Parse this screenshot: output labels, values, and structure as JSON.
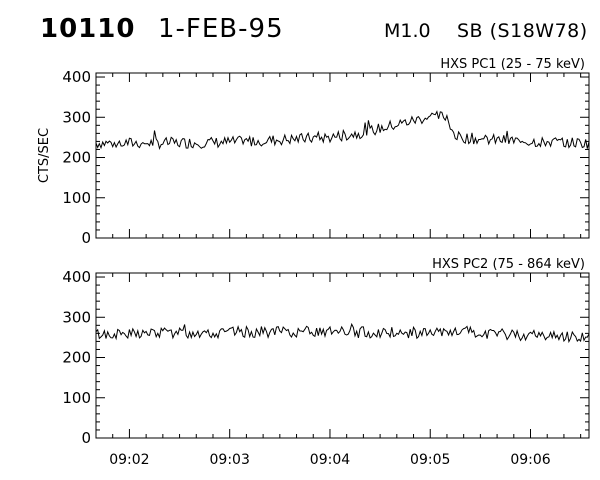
{
  "header": {
    "event_id": "10110",
    "date": "1-FEB-95",
    "flare_class": "M1.0",
    "location": "SB (S18W78)"
  },
  "chart_data": [
    {
      "type": "line",
      "title": "HXS PC1 (25 - 75 keV)",
      "ylabel": "CTS/SEC",
      "xlabel": "",
      "ylim": [
        0,
        410
      ],
      "yticks": [
        0,
        100,
        200,
        300,
        400
      ],
      "xlim": [
        "09:01:40",
        "09:06:35"
      ],
      "xticks": [
        "09:02",
        "09:03",
        "09:04",
        "09:05",
        "09:06"
      ],
      "grid": false,
      "baseline": [
        [
          0,
          236
        ],
        [
          40,
          236
        ],
        [
          80,
          238
        ],
        [
          100,
          242
        ],
        [
          120,
          246
        ],
        [
          140,
          250
        ],
        [
          160,
          262
        ],
        [
          180,
          282
        ],
        [
          190,
          292
        ],
        [
          200,
          302
        ],
        [
          210,
          302
        ],
        [
          215,
          252
        ],
        [
          230,
          245
        ],
        [
          260,
          240
        ],
        [
          295,
          236
        ]
      ],
      "noise": 14,
      "seed": 7
    },
    {
      "type": "line",
      "title": "HXS PC2 (75 - 864 keV)",
      "ylabel": "",
      "xlabel": "",
      "ylim": [
        0,
        410
      ],
      "yticks": [
        0,
        100,
        200,
        300,
        400
      ],
      "xlim": [
        "09:01:40",
        "09:06:35"
      ],
      "xticks": [
        "09:02",
        "09:03",
        "09:04",
        "09:05",
        "09:06"
      ],
      "grid": false,
      "baseline": [
        [
          0,
          258
        ],
        [
          60,
          262
        ],
        [
          120,
          264
        ],
        [
          180,
          262
        ],
        [
          240,
          258
        ],
        [
          295,
          252
        ]
      ],
      "noise": 14,
      "seed": 13
    }
  ]
}
